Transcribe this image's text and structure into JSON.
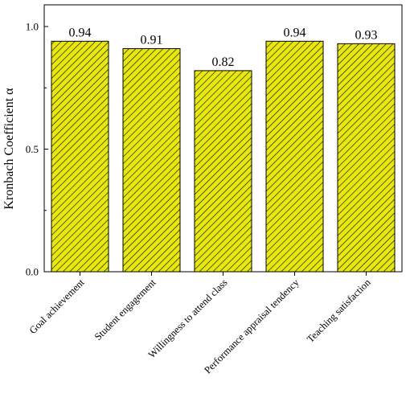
{
  "chart_data": {
    "type": "bar",
    "categories": [
      "Goal achievement",
      "Student engagement",
      "Willingness to attend class",
      "Performance appraisal tendency",
      "Teaching satisfaction"
    ],
    "values": [
      0.94,
      0.91,
      0.82,
      0.94,
      0.93
    ],
    "data_labels": [
      "0.94",
      "0.91",
      "0.82",
      "0.94",
      "0.93"
    ],
    "ylabel": "Kronbach Coefficient α",
    "xlabel": "",
    "ylim": [
      0,
      1.0
    ],
    "yticks": [
      0.0,
      0.5,
      1.0
    ],
    "ytick_labels": [
      "0.0",
      "0.5",
      "1.0"
    ],
    "bar_fill": "#e8e810",
    "bar_hatch": "diagonal",
    "grid": false,
    "legend": "none"
  }
}
